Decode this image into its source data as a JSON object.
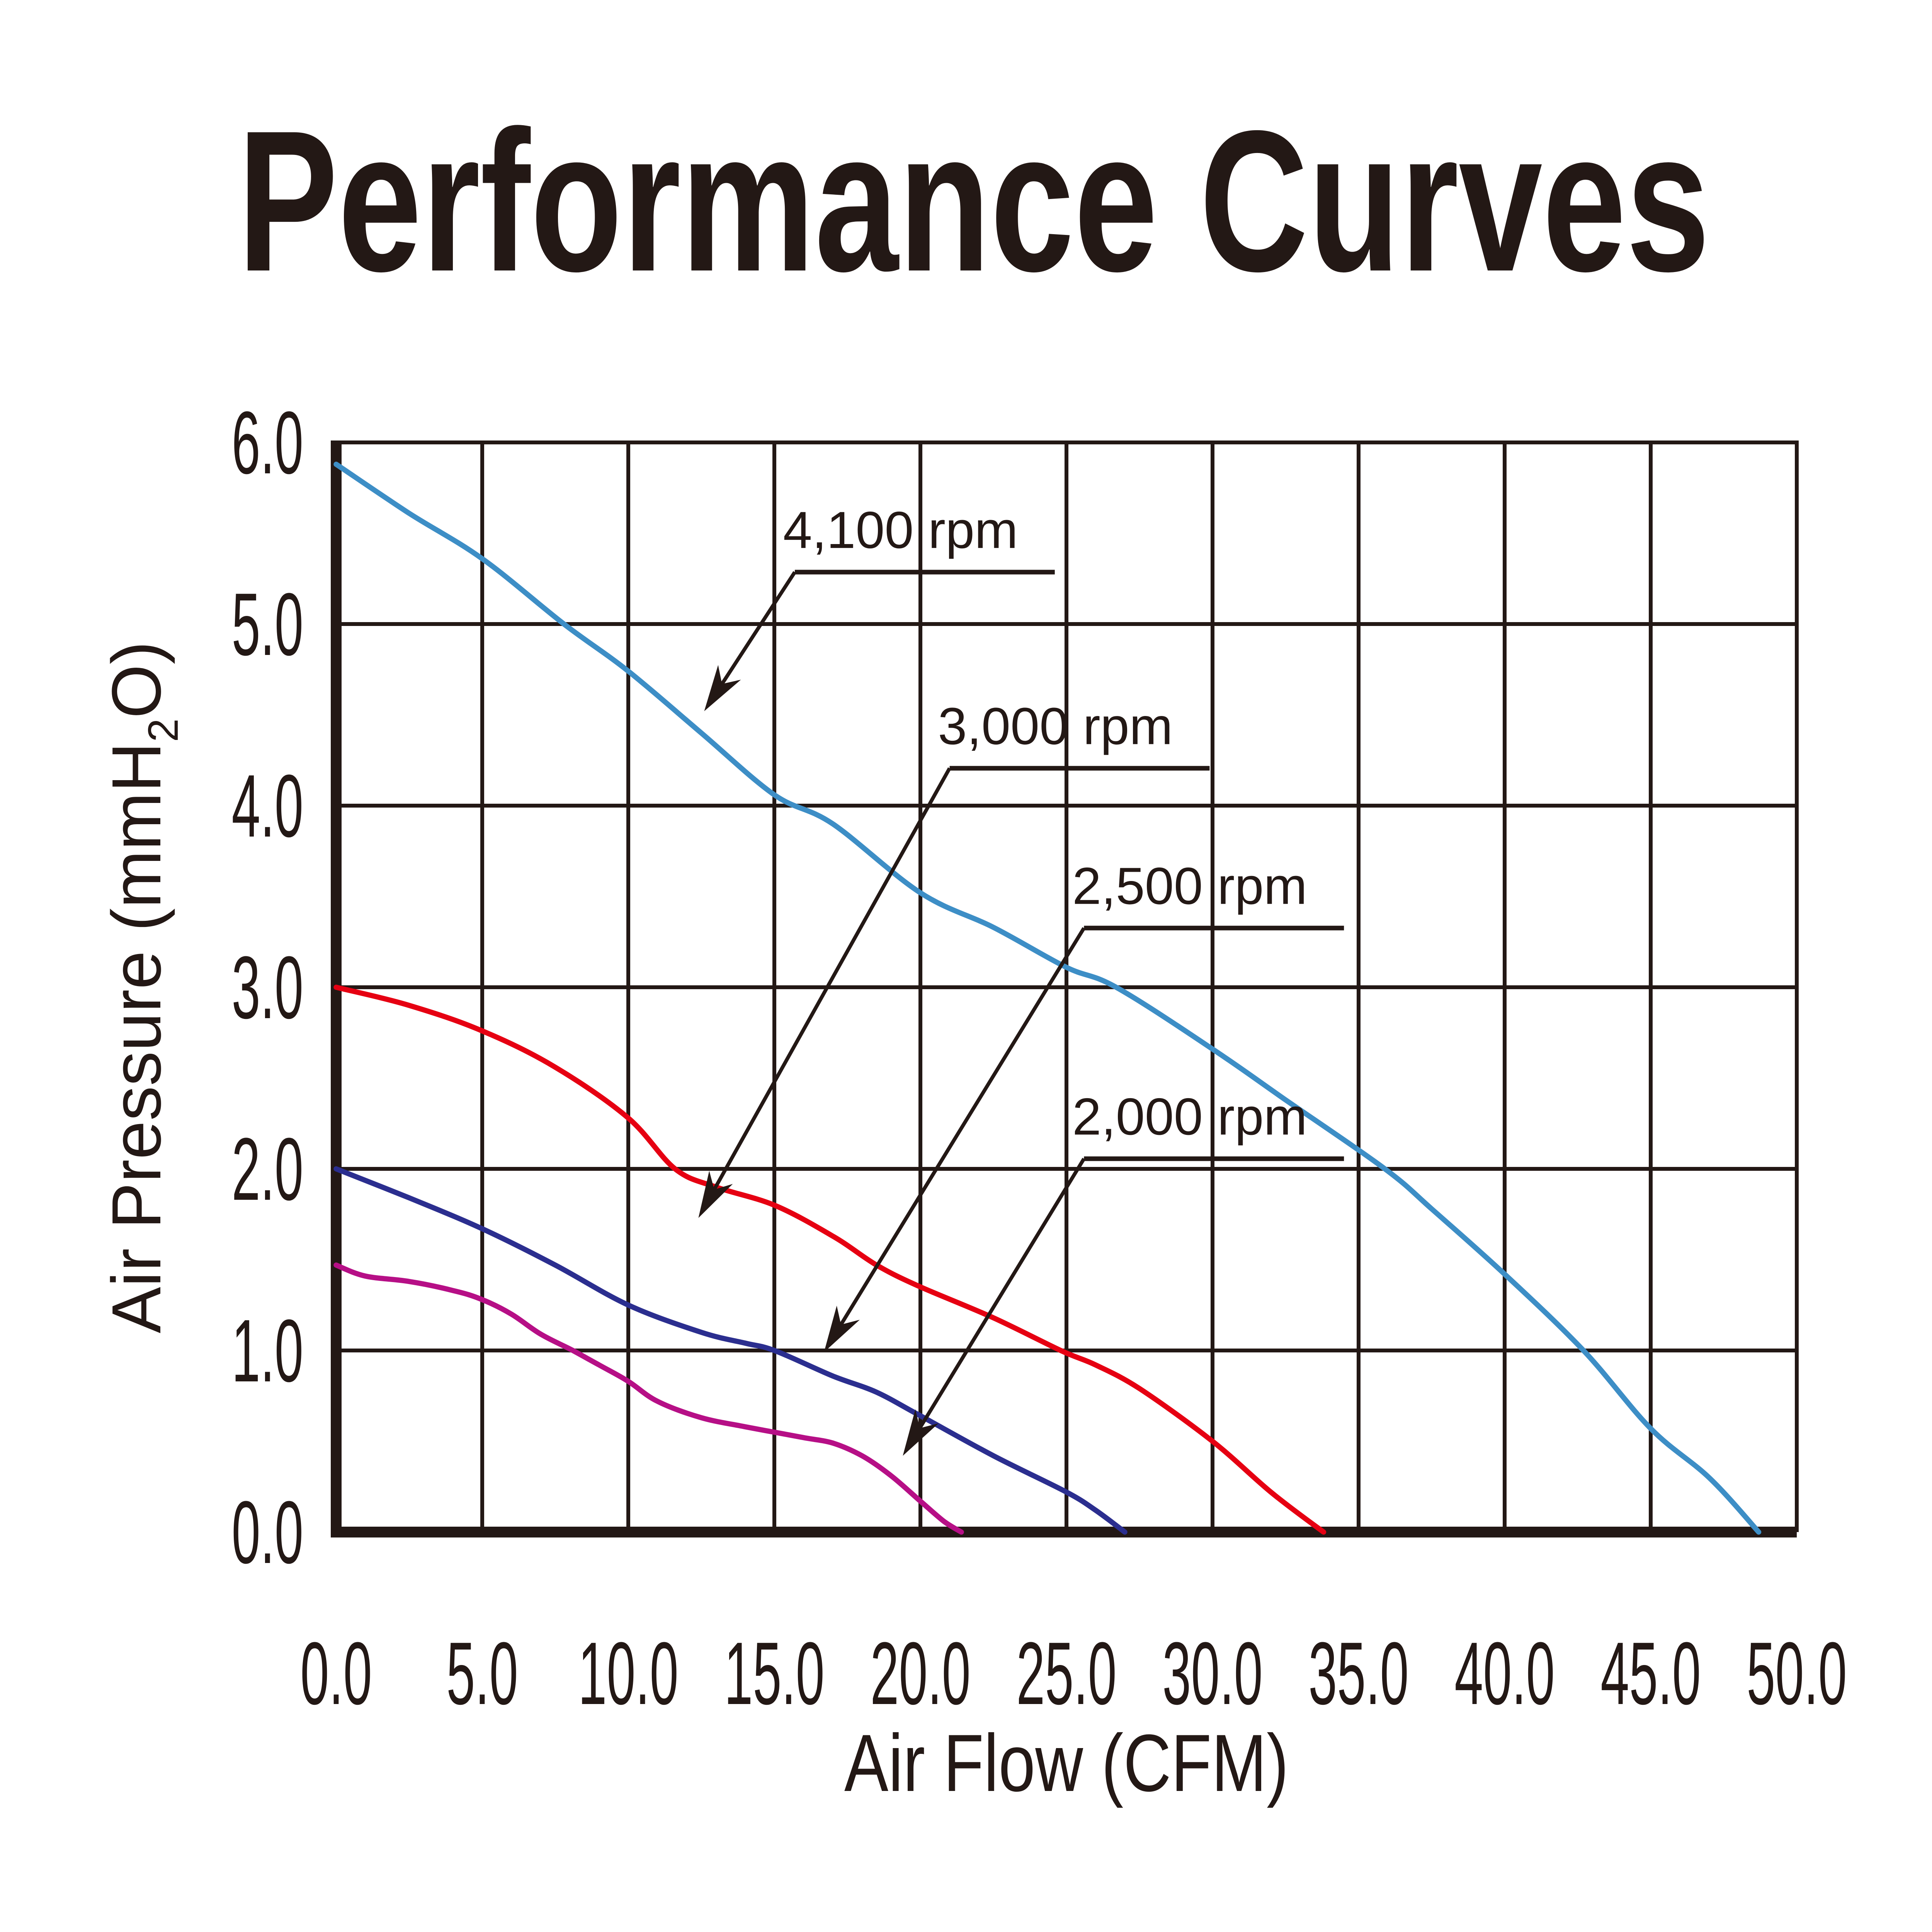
{
  "chart_data": {
    "type": "line",
    "title": "Performance Curves",
    "xlabel": "Air Flow (CFM)",
    "ylabel": "Air Pressure (mmH₂O)",
    "xlim": [
      0,
      50
    ],
    "ylim": [
      0,
      6
    ],
    "grid": true,
    "legend_position": "none",
    "ink_color": "#231815",
    "x_ticks": [
      "0.0",
      "5.0",
      "10.0",
      "15.0",
      "20.0",
      "25.0",
      "30.0",
      "35.0",
      "40.0",
      "45.0",
      "50.0"
    ],
    "y_ticks": [
      "0.0",
      "1.0",
      "2.0",
      "3.0",
      "4.0",
      "5.0",
      "6.0"
    ],
    "series": [
      {
        "name": "4,100 rpm",
        "color": "#3d8ec6",
        "points": [
          [
            0,
            5.88
          ],
          [
            2.5,
            5.61
          ],
          [
            5,
            5.36
          ],
          [
            7.8,
            5.0
          ],
          [
            10,
            4.74
          ],
          [
            12.5,
            4.4
          ],
          [
            15,
            4.06
          ],
          [
            17,
            3.9
          ],
          [
            20,
            3.52
          ],
          [
            22.5,
            3.33
          ],
          [
            25,
            3.11
          ],
          [
            26.7,
            3.0
          ],
          [
            30,
            2.66
          ],
          [
            32.5,
            2.38
          ],
          [
            35.9,
            2.0
          ],
          [
            37.5,
            1.78
          ],
          [
            40,
            1.42
          ],
          [
            42.7,
            1.0
          ],
          [
            45,
            0.57
          ],
          [
            47,
            0.3
          ],
          [
            48.7,
            0
          ]
        ]
      },
      {
        "name": "3,000 rpm",
        "color": "#e60012",
        "points": [
          [
            0,
            3.0
          ],
          [
            2.5,
            2.9
          ],
          [
            5,
            2.76
          ],
          [
            7.5,
            2.56
          ],
          [
            10,
            2.28
          ],
          [
            11.6,
            2.0
          ],
          [
            13,
            1.9
          ],
          [
            15,
            1.8
          ],
          [
            17,
            1.63
          ],
          [
            18.5,
            1.47
          ],
          [
            20,
            1.35
          ],
          [
            22.5,
            1.18
          ],
          [
            24.8,
            1.0
          ],
          [
            26,
            0.92
          ],
          [
            27.5,
            0.79
          ],
          [
            30,
            0.5
          ],
          [
            32,
            0.22
          ],
          [
            33.8,
            0
          ]
        ]
      },
      {
        "name": "2,500 rpm",
        "color": "#2b2e8f",
        "points": [
          [
            0,
            2.0
          ],
          [
            2.5,
            1.84
          ],
          [
            5,
            1.67
          ],
          [
            7.5,
            1.47
          ],
          [
            10,
            1.25
          ],
          [
            12.5,
            1.1
          ],
          [
            14,
            1.04
          ],
          [
            15,
            1.0
          ],
          [
            17,
            0.86
          ],
          [
            18.5,
            0.77
          ],
          [
            20,
            0.64
          ],
          [
            22.5,
            0.42
          ],
          [
            25,
            0.22
          ],
          [
            26,
            0.12
          ],
          [
            27,
            0
          ]
        ]
      },
      {
        "name": "2,000 rpm",
        "color": "#b60f86",
        "points": [
          [
            0,
            1.47
          ],
          [
            1,
            1.41
          ],
          [
            2.5,
            1.38
          ],
          [
            4,
            1.33
          ],
          [
            5,
            1.28
          ],
          [
            6,
            1.2
          ],
          [
            7,
            1.09
          ],
          [
            8.1,
            1.0
          ],
          [
            9,
            0.92
          ],
          [
            10,
            0.83
          ],
          [
            11,
            0.72
          ],
          [
            12.5,
            0.63
          ],
          [
            14,
            0.58
          ],
          [
            15,
            0.55
          ],
          [
            16,
            0.52
          ],
          [
            17,
            0.49
          ],
          [
            18,
            0.42
          ],
          [
            19,
            0.31
          ],
          [
            20,
            0.17
          ],
          [
            20.8,
            0.06
          ],
          [
            21.4,
            0
          ]
        ]
      }
    ],
    "annotations": [
      {
        "label": "4,100 rpm",
        "text_x": 15.3,
        "text_y": 5.52,
        "underline_x1": 15.7,
        "underline_x2": 24.6,
        "tip_x": 12.6,
        "tip_y": 4.52
      },
      {
        "label": "3,000 rpm",
        "text_x": 20.6,
        "text_y": 4.44,
        "underline_x1": 21.0,
        "underline_x2": 29.9,
        "tip_x": 12.4,
        "tip_y": 1.73
      },
      {
        "label": "2,500 rpm",
        "text_x": 25.2,
        "text_y": 3.56,
        "underline_x1": 25.6,
        "underline_x2": 34.5,
        "tip_x": 16.7,
        "tip_y": 0.99
      },
      {
        "label": "2,000 rpm",
        "text_x": 25.2,
        "text_y": 2.29,
        "underline_x1": 25.6,
        "underline_x2": 34.5,
        "tip_x": 19.4,
        "tip_y": 0.42
      }
    ]
  }
}
